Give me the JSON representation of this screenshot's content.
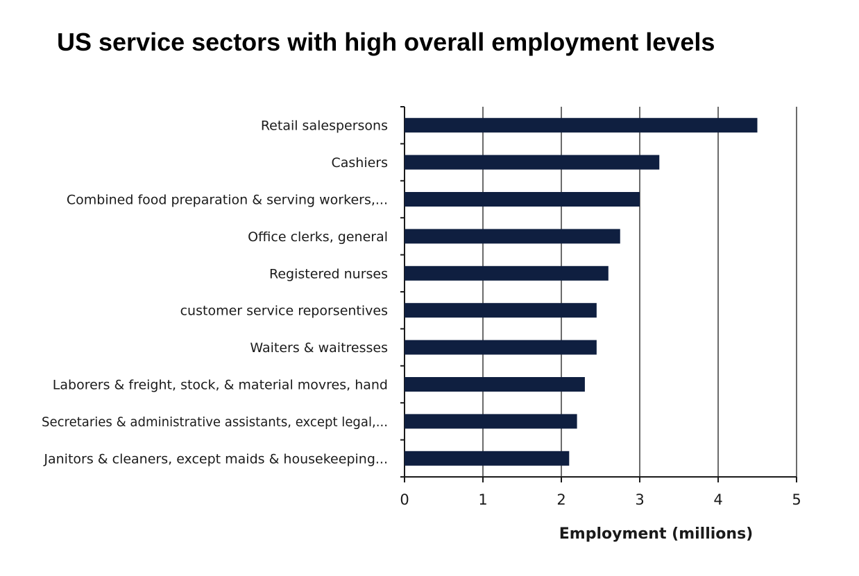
{
  "chart_data": {
    "type": "bar",
    "orientation": "horizontal",
    "title": "US service sectors with high overall employment levels",
    "xlabel": "Employment (millions)",
    "ylabel": "",
    "categories": [
      "Retail salespersons",
      "Cashiers",
      "Combined food preparation & serving workers,...",
      "Office clerks, general",
      "Registered nurses",
      "customer service reporsentives",
      "Waiters & waitresses",
      "Laborers & freight, stock, & material movres, hand",
      "Secretaries & administrative assistants, except legal,...",
      "Janitors & cleaners, except maids & housekeeping..."
    ],
    "values": [
      4.5,
      3.25,
      3.0,
      2.75,
      2.6,
      2.45,
      2.45,
      2.3,
      2.2,
      2.1
    ],
    "xlim": [
      0,
      5
    ],
    "xticks": [
      "0",
      "1",
      "2",
      "3",
      "4",
      "5"
    ],
    "grid": "vertical",
    "legend": "none",
    "bar_color": "#0f1f40"
  }
}
